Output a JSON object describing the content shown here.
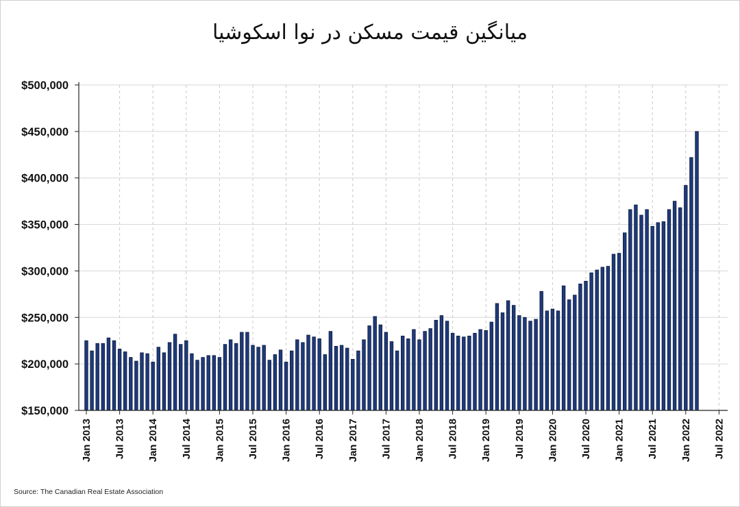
{
  "chart_data": {
    "type": "bar",
    "title": "میانگین قیمت مسکن در نوا اسکوشیا",
    "source": "Source: The Canadian Real Estate Association",
    "ylim": [
      150000,
      500000
    ],
    "y_ticks": [
      {
        "value": 150000,
        "label": "$150,000"
      },
      {
        "value": 200000,
        "label": "$200,000"
      },
      {
        "value": 250000,
        "label": "$250,000"
      },
      {
        "value": 300000,
        "label": "$300,000"
      },
      {
        "value": 350000,
        "label": "$350,000"
      },
      {
        "value": 400000,
        "label": "$400,000"
      },
      {
        "value": 450000,
        "label": "$450,000"
      },
      {
        "value": 500000,
        "label": "$500,000"
      }
    ],
    "x_ticks": [
      "Jan 2013",
      "Jul 2013",
      "Jan 2014",
      "Jul 2014",
      "Jan 2015",
      "Jul 2015",
      "Jan 2016",
      "Jul 2016",
      "Jan 2017",
      "Jul 2017",
      "Jan 2018",
      "Jul 2018",
      "Jan 2019",
      "Jul 2019",
      "Jan 2020",
      "Jul 2020",
      "Jan 2021",
      "Jul 2021",
      "Jan 2022",
      "Jul 2022"
    ],
    "grid": true,
    "bar_color": "#1f3a7a",
    "values": [
      225000,
      214000,
      222000,
      222000,
      228000,
      225000,
      216000,
      213000,
      207000,
      203000,
      212000,
      211000,
      202000,
      218000,
      212000,
      223000,
      232000,
      221000,
      225000,
      211000,
      204000,
      207000,
      209000,
      209000,
      207000,
      221000,
      226000,
      222000,
      234000,
      234000,
      220000,
      218000,
      220000,
      204000,
      210000,
      215000,
      202000,
      214000,
      226000,
      223000,
      231000,
      229000,
      227000,
      210000,
      235000,
      219000,
      220000,
      217000,
      205000,
      214000,
      226000,
      241000,
      251000,
      242000,
      234000,
      224000,
      214000,
      230000,
      227000,
      237000,
      226000,
      235000,
      238000,
      247000,
      252000,
      246000,
      233000,
      230000,
      229000,
      230000,
      233000,
      237000,
      236000,
      245000,
      265000,
      255000,
      268000,
      263000,
      252000,
      250000,
      246000,
      248000,
      278000,
      257000,
      259000,
      257000,
      284000,
      269000,
      274000,
      286000,
      289000,
      298000,
      301000,
      304000,
      305000,
      318000,
      319000,
      341000,
      366000,
      371000,
      360000,
      366000,
      348000,
      352000,
      353000,
      366000,
      375000,
      368000,
      392000,
      422000,
      450000
    ]
  }
}
